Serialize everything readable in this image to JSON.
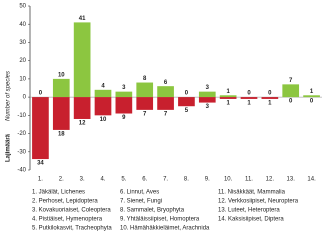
{
  "chart_data": {
    "type": "bar",
    "y_label": "Lajimäärä",
    "y_label_en": "Number of species",
    "categories": [
      "1.",
      "2.",
      "3.",
      "4.",
      "5.",
      "6.",
      "7.",
      "8.",
      "9.",
      "10.",
      "11.",
      "12.",
      "13.",
      "14."
    ],
    "series": [
      {
        "color": "#8cc640",
        "values": [
          0,
          10,
          41,
          4,
          3,
          8,
          6,
          0,
          3,
          1,
          0,
          0,
          7,
          1
        ]
      },
      {
        "color": "#c8202e",
        "values": [
          -34,
          -18,
          -12,
          -10,
          -9,
          -7,
          -7,
          -5,
          -3,
          -1,
          -1,
          -1,
          0,
          0
        ],
        "value_labels": [
          "34",
          "18",
          "12",
          "10",
          "9",
          "7",
          "7",
          "5",
          "3",
          "1",
          "1",
          "1",
          "0",
          "0"
        ]
      }
    ],
    "ylim": [
      -40,
      50
    ],
    "yticks": [
      -40,
      -30,
      -20,
      -10,
      0,
      10,
      20,
      30,
      40,
      50
    ],
    "legend": [
      "1. Jäkälät, Lichenes",
      "2. Perhoset, Lepidoptera",
      "3. Kovakuoriaiset, Coleoptera",
      "4. Pistiäiset, Hymenoptera",
      "5. Putkilokasvit, Tracheophyta",
      "6. Linnut, Aves",
      "7. Sienet, Fungi",
      "8. Sammalet, Bryophyta",
      "9. Yhtäläissiipiset, Homoptera",
      "10. Hämähäkkieläimet, Arachnida",
      "11. Nisäkkäät, Mammalia",
      "12. Verkkosiipiset, Neuroptera",
      "13. Luteet, Heteroptera",
      "14. Kaksisiipiset, Diptera"
    ]
  }
}
